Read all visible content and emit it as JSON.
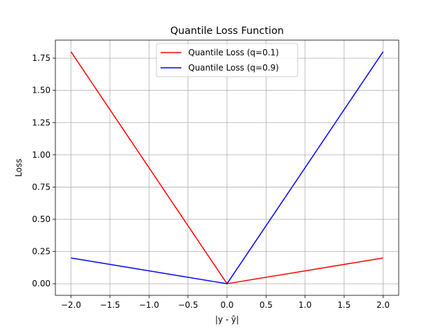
{
  "chart_data": {
    "type": "line",
    "title": "Quantile Loss Function",
    "xlabel": "|y - ŷ|",
    "ylabel": "Loss",
    "xlim": [
      -2.2,
      2.2
    ],
    "ylim": [
      -0.09,
      1.89
    ],
    "xticks": [
      -2.0,
      -1.5,
      -1.0,
      -0.5,
      0.0,
      0.5,
      1.0,
      1.5,
      2.0
    ],
    "xtick_labels": [
      "−2.0",
      "−1.5",
      "−1.0",
      "−0.5",
      "0.0",
      "0.5",
      "1.0",
      "1.5",
      "2.0"
    ],
    "yticks": [
      0.0,
      0.25,
      0.5,
      0.75,
      1.0,
      1.25,
      1.5,
      1.75
    ],
    "ytick_labels": [
      "0.00",
      "0.25",
      "0.50",
      "0.75",
      "1.00",
      "1.25",
      "1.50",
      "1.75"
    ],
    "grid": true,
    "legend_position": "top-center",
    "series": [
      {
        "name": "Quantile Loss (q=0.1)",
        "color": "#ff0000",
        "x": [
          -2.0,
          0.0,
          2.0
        ],
        "y": [
          1.8,
          0.0,
          0.2
        ]
      },
      {
        "name": "Quantile Loss (q=0.9)",
        "color": "#0000ff",
        "x": [
          -2.0,
          0.0,
          2.0
        ],
        "y": [
          0.2,
          0.0,
          1.8
        ]
      }
    ]
  }
}
